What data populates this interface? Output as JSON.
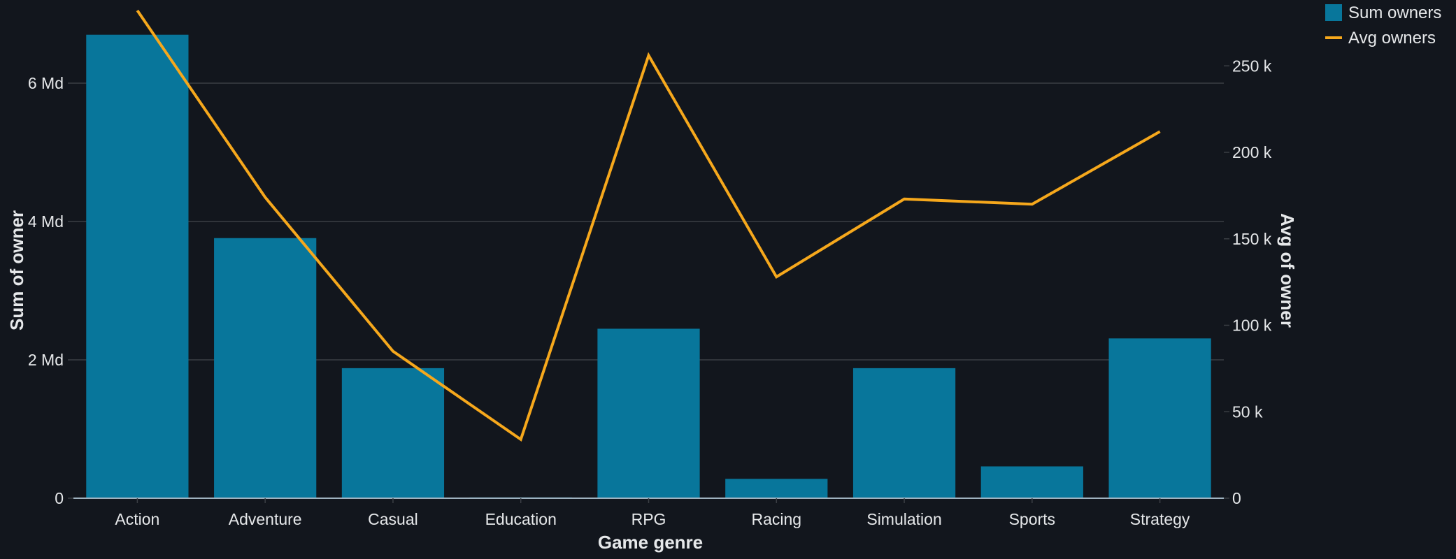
{
  "chart_data": {
    "type": "bar",
    "categories": [
      "Action",
      "Adventure",
      "Casual",
      "Education",
      "RPG",
      "Racing",
      "Simulation",
      "Sports",
      "Strategy"
    ],
    "series": [
      {
        "name": "Sum owners",
        "type": "bar",
        "axis": "left",
        "color": "#08769b",
        "values": [
          6700000000,
          3760000000,
          1880000000,
          12000000,
          2450000000,
          280000000,
          1880000000,
          460000000,
          2310000000
        ]
      },
      {
        "name": "Avg owners",
        "type": "line",
        "axis": "right",
        "color": "#f6a81c",
        "values": [
          282000,
          174000,
          85000,
          34000,
          256000,
          128000,
          173000,
          170000,
          212000
        ]
      }
    ],
    "xlabel": "Game genre",
    "ylabel": "Sum of owner",
    "y2label": "Avg of owner",
    "ylim": [
      0,
      7000000000
    ],
    "y2lim": [
      0,
      280000
    ],
    "yticks": [
      {
        "value": 0,
        "label": "0"
      },
      {
        "value": 2000000000,
        "label": "2 Md"
      },
      {
        "value": 4000000000,
        "label": "4 Md"
      },
      {
        "value": 6000000000,
        "label": "6 Md"
      }
    ],
    "y2ticks": [
      {
        "value": 0,
        "label": "0"
      },
      {
        "value": 50000,
        "label": "50 k"
      },
      {
        "value": 100000,
        "label": "100 k"
      },
      {
        "value": 150000,
        "label": "150 k"
      },
      {
        "value": 200000,
        "label": "200 k"
      },
      {
        "value": 250000,
        "label": "250 k"
      }
    ],
    "grid": true,
    "legend_position": "top-right",
    "colors": {
      "background": "#12161d",
      "grid": "#3a3e44",
      "axis_line": "#9fb2c0",
      "text": "#e6e8ea"
    }
  }
}
